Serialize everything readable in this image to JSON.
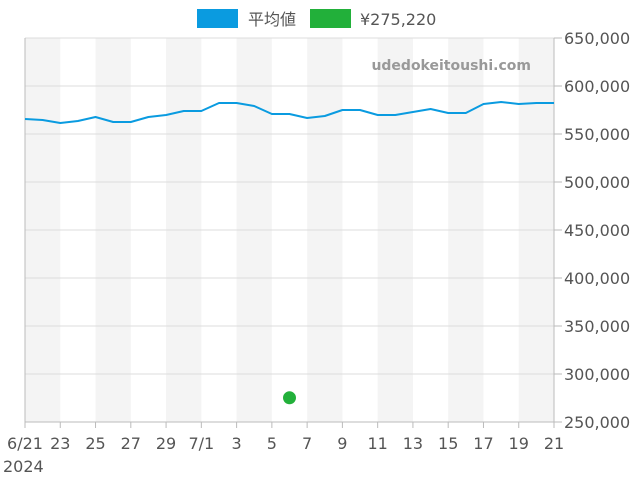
{
  "legend": {
    "items": [
      {
        "label": "平均値",
        "color": "#0a9be0"
      },
      {
        "label": "¥275,220",
        "color": "#22b03a"
      }
    ]
  },
  "watermark": "udedokeitoushi.com",
  "colors": {
    "line": "#0a9be0",
    "point": "#22b03a",
    "band": "#f4f4f4",
    "grid": "#dddddd",
    "axis": "#bbbbbb",
    "text": "#555555"
  },
  "x_axis": {
    "year_label": "2024",
    "tick_labels": [
      "6/21",
      "23",
      "25",
      "27",
      "29",
      "7/1",
      "3",
      "5",
      "7",
      "9",
      "11",
      "13",
      "15",
      "17",
      "19",
      "21"
    ]
  },
  "y_axis": {
    "tick_labels": [
      "650,000",
      "600,000",
      "550,000",
      "500,000",
      "450,000",
      "400,000",
      "350,000",
      "300,000",
      "250,000"
    ]
  },
  "chart_data": {
    "type": "line",
    "title": "",
    "xlabel": "",
    "ylabel": "",
    "ylim": [
      250000,
      650000
    ],
    "y_ticks": [
      250000,
      300000,
      350000,
      400000,
      450000,
      500000,
      550000,
      600000,
      650000
    ],
    "y_axis_position": "right",
    "grid": true,
    "legend_position": "top",
    "x": [
      "2024-06-21",
      "2024-06-22",
      "2024-06-23",
      "2024-06-24",
      "2024-06-25",
      "2024-06-26",
      "2024-06-27",
      "2024-06-28",
      "2024-06-29",
      "2024-06-30",
      "2024-07-01",
      "2024-07-02",
      "2024-07-03",
      "2024-07-04",
      "2024-07-05",
      "2024-07-06",
      "2024-07-07",
      "2024-07-08",
      "2024-07-09",
      "2024-07-10",
      "2024-07-11",
      "2024-07-12",
      "2024-07-13",
      "2024-07-14",
      "2024-07-15",
      "2024-07-16",
      "2024-07-17",
      "2024-07-18",
      "2024-07-19",
      "2024-07-20",
      "2024-07-21"
    ],
    "series": [
      {
        "name": "平均値",
        "type": "line",
        "color": "#0a9be0",
        "values": [
          565600,
          564600,
          561500,
          563500,
          567700,
          562500,
          562500,
          567700,
          569800,
          574000,
          574000,
          582300,
          582300,
          579200,
          570800,
          570800,
          566700,
          568800,
          575000,
          575000,
          569800,
          569800,
          572900,
          576000,
          571900,
          571900,
          581200,
          583300,
          581200,
          582300,
          582300
        ]
      },
      {
        "name": "¥275,220",
        "type": "scatter",
        "color": "#22b03a",
        "points": [
          {
            "x": "2024-07-06",
            "y": 275220
          }
        ]
      }
    ]
  }
}
